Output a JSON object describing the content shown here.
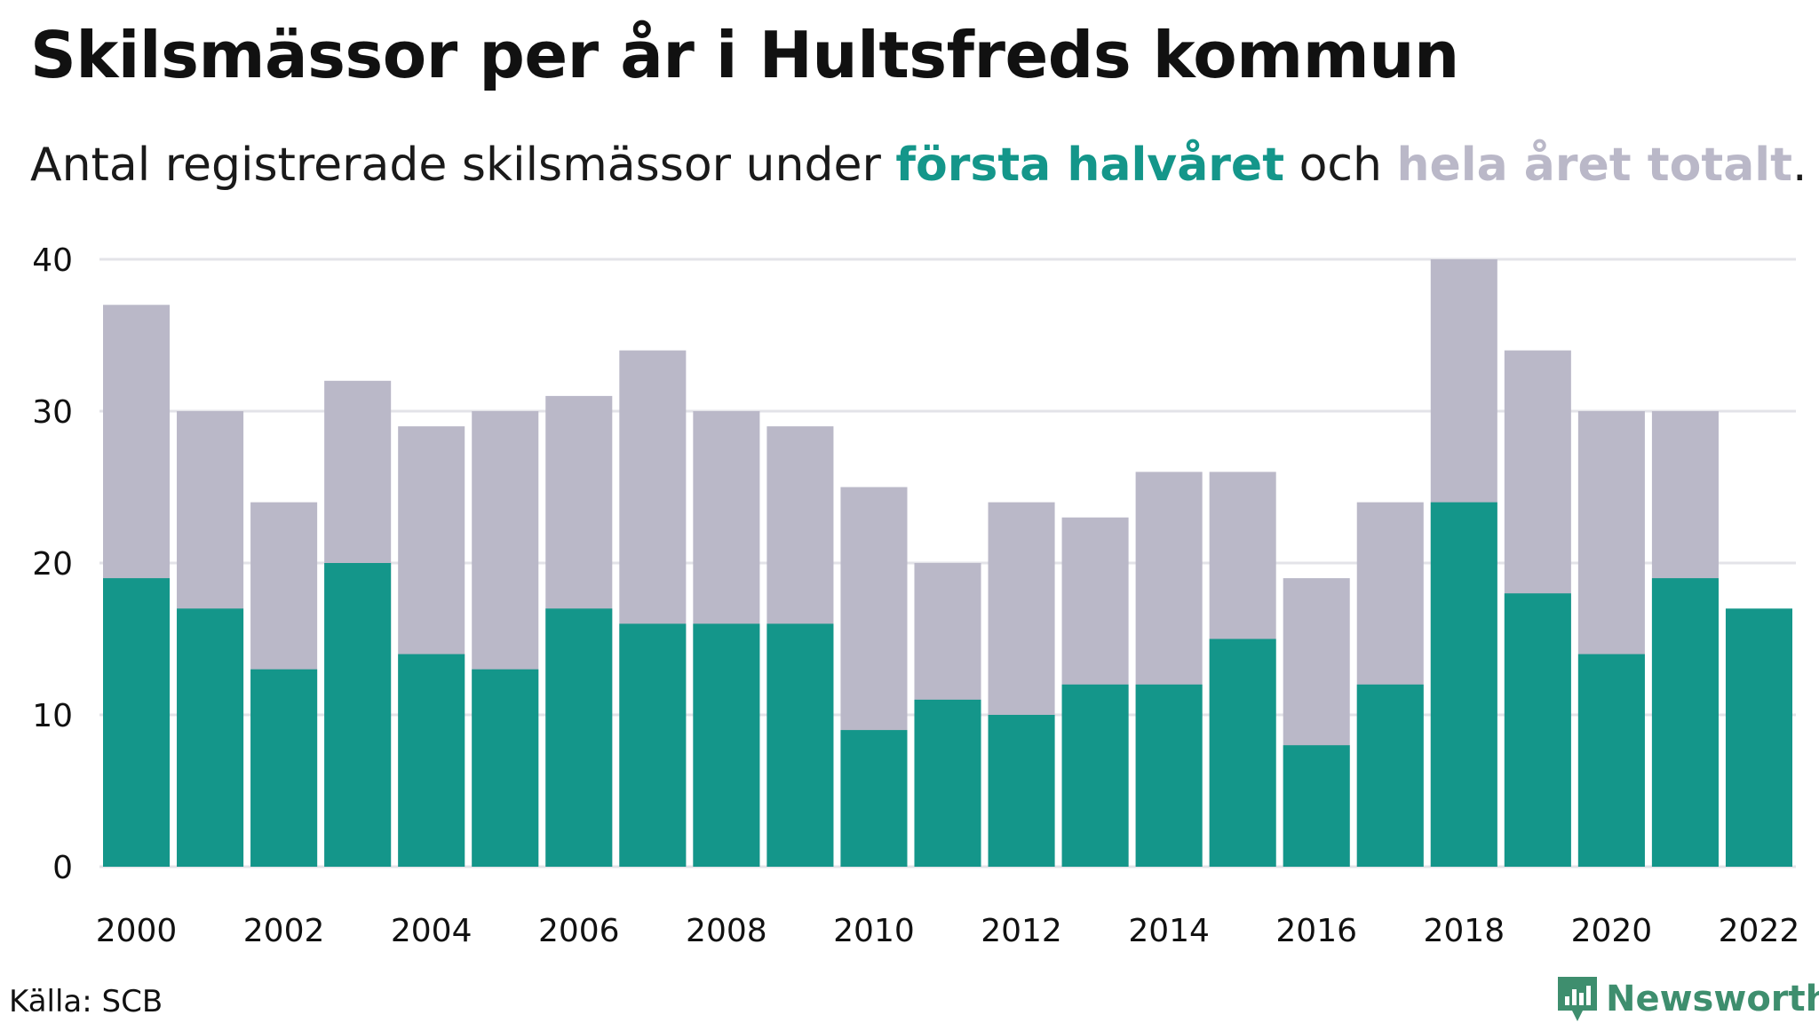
{
  "title": "Skilsmässor per år i Hultsfreds kommun",
  "subtitle": {
    "prefix": "Antal registrerade skilsmässor under ",
    "highlight_half": "första halvåret",
    "middle": " och ",
    "highlight_total": "hela året totalt",
    "suffix": "."
  },
  "source": "Källa: SCB",
  "brand": {
    "name": "Newsworthy",
    "icon": "newsworthy-logo-icon"
  },
  "colors": {
    "first_half": "#14968a",
    "full_year": "#bab8c8",
    "grid": "#e3e3e8",
    "text": "#111111",
    "brand": "#3e8e6e"
  },
  "chart_data": {
    "type": "bar",
    "title": "Skilsmässor per år i Hultsfreds kommun",
    "xlabel": "",
    "ylabel": "",
    "ylim": [
      0,
      40
    ],
    "yticks": [
      0,
      10,
      20,
      30,
      40
    ],
    "grid": true,
    "categories": [
      "2000",
      "2001",
      "2002",
      "2003",
      "2004",
      "2005",
      "2006",
      "2007",
      "2008",
      "2009",
      "2010",
      "2011",
      "2012",
      "2013",
      "2014",
      "2015",
      "2016",
      "2017",
      "2018",
      "2019",
      "2020",
      "2021",
      "2022"
    ],
    "xtick_labels": [
      "2000",
      "2002",
      "2004",
      "2006",
      "2008",
      "2010",
      "2012",
      "2014",
      "2016",
      "2018",
      "2020",
      "2022"
    ],
    "series": [
      {
        "name": "hela året totalt",
        "color": "#bab8c8",
        "values": [
          37,
          30,
          24,
          32,
          29,
          30,
          31,
          34,
          30,
          29,
          25,
          20,
          24,
          23,
          26,
          26,
          19,
          24,
          40,
          34,
          30,
          30,
          null
        ]
      },
      {
        "name": "första halvåret",
        "color": "#14968a",
        "values": [
          19,
          17,
          13,
          20,
          14,
          13,
          17,
          16,
          16,
          16,
          9,
          11,
          10,
          12,
          12,
          15,
          8,
          12,
          24,
          18,
          14,
          19,
          17
        ]
      }
    ]
  }
}
